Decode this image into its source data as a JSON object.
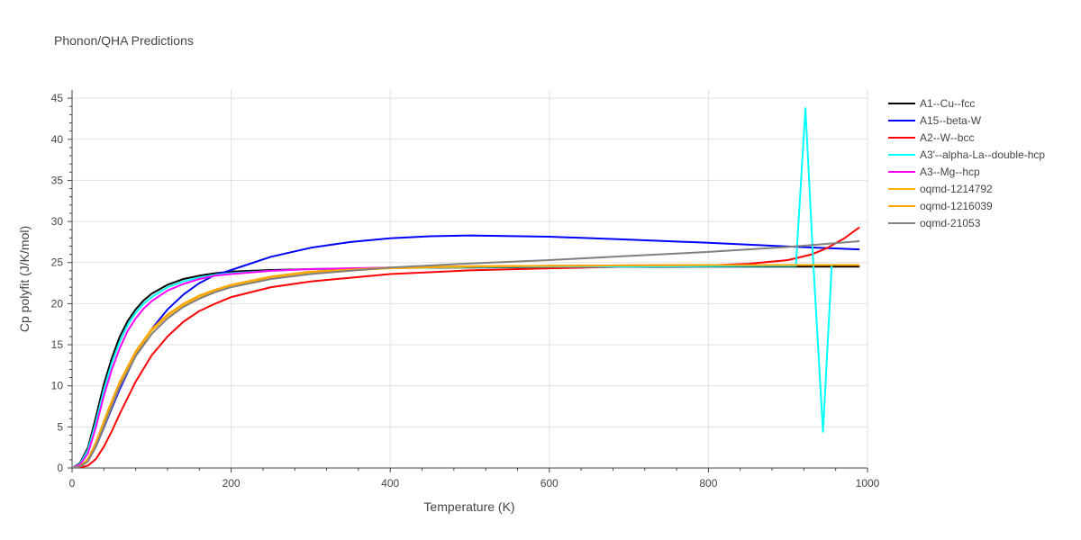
{
  "chart_data": {
    "type": "line",
    "title": "Phonon/QHA Predictions",
    "xlabel": "Temperature (K)",
    "ylabel": "Cp polyfit (J/K/mol)",
    "xlim": [
      0,
      1000
    ],
    "ylim": [
      0,
      46
    ],
    "x_ticks": [
      0,
      200,
      400,
      600,
      800,
      1000
    ],
    "y_ticks": [
      0,
      5,
      10,
      15,
      20,
      25,
      30,
      35,
      40,
      45
    ],
    "grid": true,
    "legend_position": "right",
    "series": [
      {
        "name": "A1--Cu--fcc",
        "color": "#000000",
        "x": [
          0,
          10,
          20,
          30,
          40,
          50,
          60,
          70,
          80,
          90,
          100,
          120,
          140,
          160,
          180,
          200,
          250,
          300,
          400,
          500,
          600,
          700,
          800,
          900,
          990
        ],
        "y": [
          0,
          0.6,
          2.5,
          6.2,
          10.2,
          13.4,
          16.0,
          17.9,
          19.3,
          20.4,
          21.2,
          22.3,
          23.0,
          23.4,
          23.7,
          23.9,
          24.1,
          24.2,
          24.35,
          24.4,
          24.45,
          24.48,
          24.5,
          24.5,
          24.5
        ]
      },
      {
        "name": "A15--beta-W",
        "color": "#0000ff",
        "x": [
          0,
          10,
          20,
          30,
          40,
          50,
          60,
          80,
          100,
          120,
          140,
          160,
          180,
          200,
          250,
          300,
          350,
          400,
          450,
          500,
          600,
          700,
          800,
          900,
          990
        ],
        "y": [
          0,
          0.2,
          0.9,
          2.6,
          4.9,
          7.3,
          9.6,
          13.7,
          16.9,
          19.3,
          21.1,
          22.5,
          23.5,
          24.1,
          25.7,
          26.8,
          27.5,
          27.95,
          28.2,
          28.3,
          28.15,
          27.8,
          27.4,
          26.95,
          26.6
        ]
      },
      {
        "name": "A2--W--bcc",
        "color": "#ff0000",
        "x": [
          0,
          10,
          20,
          30,
          40,
          50,
          60,
          80,
          100,
          120,
          140,
          160,
          180,
          200,
          250,
          300,
          400,
          500,
          600,
          700,
          800,
          850,
          900,
          930,
          950,
          970,
          990
        ],
        "y": [
          0,
          0.05,
          0.3,
          1.1,
          2.6,
          4.5,
          6.6,
          10.5,
          13.7,
          16.0,
          17.8,
          19.1,
          20.0,
          20.8,
          22.0,
          22.7,
          23.6,
          24.05,
          24.3,
          24.5,
          24.65,
          24.85,
          25.3,
          26.0,
          26.8,
          27.9,
          29.3
        ]
      },
      {
        "name": "A3'--alpha-La--double-hcp",
        "color": "#00ffff",
        "x": [
          0,
          10,
          20,
          30,
          40,
          50,
          60,
          70,
          80,
          90,
          100,
          120,
          140,
          160,
          180,
          200,
          250,
          300,
          400,
          500,
          600,
          700,
          800,
          880,
          910,
          922,
          932,
          944,
          955
        ],
        "y": [
          0,
          0.5,
          2.2,
          5.6,
          9.5,
          12.8,
          15.4,
          17.4,
          18.9,
          20.0,
          20.8,
          22.0,
          22.7,
          23.2,
          23.5,
          23.7,
          24.0,
          24.2,
          24.35,
          24.45,
          24.5,
          24.5,
          24.55,
          24.6,
          24.6,
          43.8,
          24.6,
          4.4,
          24.6
        ]
      },
      {
        "name": "A3--Mg--hcp",
        "color": "#ff00ff",
        "x": [
          0,
          10,
          20,
          30,
          40,
          50,
          60,
          70,
          80,
          90,
          100,
          120,
          140,
          160,
          180,
          200,
          250,
          300,
          400,
          500,
          600,
          700,
          800,
          900,
          990
        ],
        "y": [
          0,
          0.4,
          1.8,
          5.0,
          8.8,
          12.0,
          14.6,
          16.7,
          18.2,
          19.4,
          20.3,
          21.6,
          22.4,
          23.0,
          23.4,
          23.6,
          24.0,
          24.2,
          24.4,
          24.5,
          24.6,
          24.65,
          24.7,
          24.7,
          24.7
        ]
      },
      {
        "name": "oqmd-1214792",
        "color": "#ffb400",
        "x": [
          0,
          10,
          20,
          30,
          40,
          50,
          60,
          80,
          100,
          120,
          140,
          160,
          180,
          200,
          250,
          300,
          400,
          500,
          600,
          700,
          800,
          900,
          990
        ],
        "y": [
          0,
          0.2,
          1.0,
          3.0,
          5.5,
          8.0,
          10.3,
          14.0,
          16.7,
          18.5,
          19.8,
          20.8,
          21.6,
          22.2,
          23.2,
          23.8,
          24.3,
          24.5,
          24.6,
          24.65,
          24.7,
          24.7,
          24.7
        ]
      },
      {
        "name": "oqmd-1216039",
        "color": "#ffa500",
        "x": [
          0,
          10,
          20,
          30,
          40,
          50,
          60,
          80,
          100,
          120,
          140,
          160,
          180,
          200,
          250,
          300,
          400,
          500,
          600,
          700,
          800,
          900,
          990
        ],
        "y": [
          0,
          0.2,
          1.1,
          3.1,
          5.7,
          8.2,
          10.5,
          14.2,
          16.9,
          18.7,
          20.0,
          21.0,
          21.7,
          22.3,
          23.3,
          23.9,
          24.4,
          24.55,
          24.6,
          24.65,
          24.7,
          24.7,
          24.7
        ]
      },
      {
        "name": "oqmd-21053",
        "color": "#808080",
        "x": [
          0,
          10,
          20,
          30,
          40,
          50,
          60,
          80,
          100,
          120,
          140,
          160,
          180,
          200,
          250,
          300,
          400,
          500,
          600,
          700,
          800,
          900,
          990
        ],
        "y": [
          0,
          0.15,
          0.8,
          2.6,
          5.0,
          7.5,
          9.9,
          13.6,
          16.3,
          18.2,
          19.6,
          20.6,
          21.4,
          22.0,
          23.0,
          23.6,
          24.4,
          24.9,
          25.3,
          25.8,
          26.3,
          26.9,
          27.6
        ]
      }
    ]
  }
}
